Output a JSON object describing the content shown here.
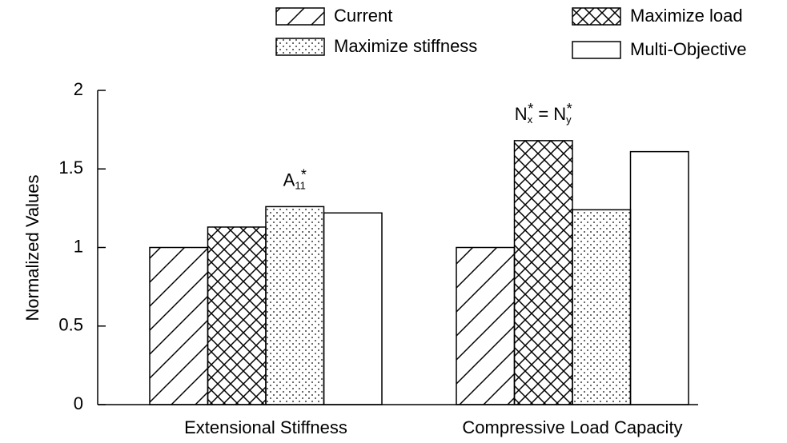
{
  "chart_data": {
    "type": "bar",
    "ylabel": "Normalized Values",
    "categories": [
      "Extensional Stiffness",
      "Compressive Load Capacity"
    ],
    "series": [
      {
        "name": "Current",
        "color": "#000000",
        "hatch": "/",
        "values": [
          1.0,
          1.0
        ]
      },
      {
        "name": "Maximize load",
        "color": "#000000",
        "hatch": "x",
        "values": [
          1.13,
          1.68
        ]
      },
      {
        "name": "Maximize stiffness",
        "color": "#000000",
        "hatch": ".",
        "values": [
          1.26,
          1.24
        ]
      },
      {
        "name": "Multi-Objective",
        "color": "#000000",
        "hatch": "\\",
        "values": [
          1.22,
          1.61
        ]
      }
    ],
    "ylim": [
      0,
      2
    ],
    "yticks": [
      0,
      0.5,
      1,
      1.5,
      2
    ],
    "annotations": [
      [
        {
          "text": "A"
        },
        {
          "text": "11",
          "shift": "sub"
        },
        {
          "text": "*",
          "shift": "sup"
        }
      ],
      [
        {
          "text": "N"
        },
        {
          "text": "x",
          "shift": "sub"
        },
        {
          "text": "*",
          "shift": "sup"
        },
        {
          "text": " = "
        },
        {
          "text": "N"
        },
        {
          "text": "y",
          "shift": "sub"
        },
        {
          "text": "*",
          "shift": "sup"
        }
      ]
    ]
  }
}
